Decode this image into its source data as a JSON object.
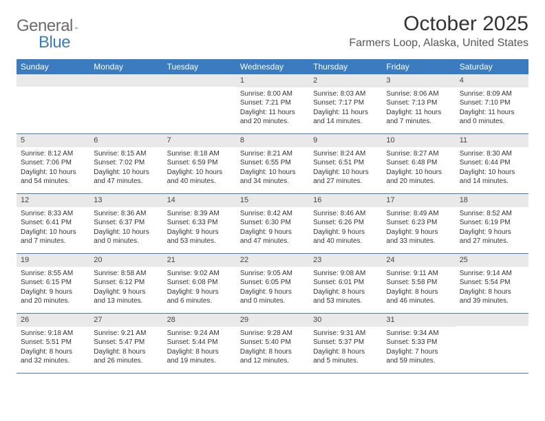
{
  "logo": {
    "text_gray": "General",
    "text_blue": "Blue"
  },
  "title": "October 2025",
  "location": "Farmers Loop, Alaska, United States",
  "colors": {
    "header_bar": "#3b7bbf",
    "daynum_bg": "#e9e9e9",
    "border": "#3b7bbf",
    "text": "#333333",
    "logo_gray": "#6b6b6b",
    "logo_blue": "#3b7bbf",
    "background": "#ffffff"
  },
  "typography": {
    "title_fontsize": 30,
    "location_fontsize": 16,
    "weekday_fontsize": 12,
    "daynum_fontsize": 11,
    "body_fontsize": 10
  },
  "weekdays": [
    "Sunday",
    "Monday",
    "Tuesday",
    "Wednesday",
    "Thursday",
    "Friday",
    "Saturday"
  ],
  "weeks": [
    [
      {
        "num": "",
        "sunrise": "",
        "sunset": "",
        "daylight": ""
      },
      {
        "num": "",
        "sunrise": "",
        "sunset": "",
        "daylight": ""
      },
      {
        "num": "",
        "sunrise": "",
        "sunset": "",
        "daylight": ""
      },
      {
        "num": "1",
        "sunrise": "Sunrise: 8:00 AM",
        "sunset": "Sunset: 7:21 PM",
        "daylight": "Daylight: 11 hours and 20 minutes."
      },
      {
        "num": "2",
        "sunrise": "Sunrise: 8:03 AM",
        "sunset": "Sunset: 7:17 PM",
        "daylight": "Daylight: 11 hours and 14 minutes."
      },
      {
        "num": "3",
        "sunrise": "Sunrise: 8:06 AM",
        "sunset": "Sunset: 7:13 PM",
        "daylight": "Daylight: 11 hours and 7 minutes."
      },
      {
        "num": "4",
        "sunrise": "Sunrise: 8:09 AM",
        "sunset": "Sunset: 7:10 PM",
        "daylight": "Daylight: 11 hours and 0 minutes."
      }
    ],
    [
      {
        "num": "5",
        "sunrise": "Sunrise: 8:12 AM",
        "sunset": "Sunset: 7:06 PM",
        "daylight": "Daylight: 10 hours and 54 minutes."
      },
      {
        "num": "6",
        "sunrise": "Sunrise: 8:15 AM",
        "sunset": "Sunset: 7:02 PM",
        "daylight": "Daylight: 10 hours and 47 minutes."
      },
      {
        "num": "7",
        "sunrise": "Sunrise: 8:18 AM",
        "sunset": "Sunset: 6:59 PM",
        "daylight": "Daylight: 10 hours and 40 minutes."
      },
      {
        "num": "8",
        "sunrise": "Sunrise: 8:21 AM",
        "sunset": "Sunset: 6:55 PM",
        "daylight": "Daylight: 10 hours and 34 minutes."
      },
      {
        "num": "9",
        "sunrise": "Sunrise: 8:24 AM",
        "sunset": "Sunset: 6:51 PM",
        "daylight": "Daylight: 10 hours and 27 minutes."
      },
      {
        "num": "10",
        "sunrise": "Sunrise: 8:27 AM",
        "sunset": "Sunset: 6:48 PM",
        "daylight": "Daylight: 10 hours and 20 minutes."
      },
      {
        "num": "11",
        "sunrise": "Sunrise: 8:30 AM",
        "sunset": "Sunset: 6:44 PM",
        "daylight": "Daylight: 10 hours and 14 minutes."
      }
    ],
    [
      {
        "num": "12",
        "sunrise": "Sunrise: 8:33 AM",
        "sunset": "Sunset: 6:41 PM",
        "daylight": "Daylight: 10 hours and 7 minutes."
      },
      {
        "num": "13",
        "sunrise": "Sunrise: 8:36 AM",
        "sunset": "Sunset: 6:37 PM",
        "daylight": "Daylight: 10 hours and 0 minutes."
      },
      {
        "num": "14",
        "sunrise": "Sunrise: 8:39 AM",
        "sunset": "Sunset: 6:33 PM",
        "daylight": "Daylight: 9 hours and 53 minutes."
      },
      {
        "num": "15",
        "sunrise": "Sunrise: 8:42 AM",
        "sunset": "Sunset: 6:30 PM",
        "daylight": "Daylight: 9 hours and 47 minutes."
      },
      {
        "num": "16",
        "sunrise": "Sunrise: 8:46 AM",
        "sunset": "Sunset: 6:26 PM",
        "daylight": "Daylight: 9 hours and 40 minutes."
      },
      {
        "num": "17",
        "sunrise": "Sunrise: 8:49 AM",
        "sunset": "Sunset: 6:23 PM",
        "daylight": "Daylight: 9 hours and 33 minutes."
      },
      {
        "num": "18",
        "sunrise": "Sunrise: 8:52 AM",
        "sunset": "Sunset: 6:19 PM",
        "daylight": "Daylight: 9 hours and 27 minutes."
      }
    ],
    [
      {
        "num": "19",
        "sunrise": "Sunrise: 8:55 AM",
        "sunset": "Sunset: 6:15 PM",
        "daylight": "Daylight: 9 hours and 20 minutes."
      },
      {
        "num": "20",
        "sunrise": "Sunrise: 8:58 AM",
        "sunset": "Sunset: 6:12 PM",
        "daylight": "Daylight: 9 hours and 13 minutes."
      },
      {
        "num": "21",
        "sunrise": "Sunrise: 9:02 AM",
        "sunset": "Sunset: 6:08 PM",
        "daylight": "Daylight: 9 hours and 6 minutes."
      },
      {
        "num": "22",
        "sunrise": "Sunrise: 9:05 AM",
        "sunset": "Sunset: 6:05 PM",
        "daylight": "Daylight: 9 hours and 0 minutes."
      },
      {
        "num": "23",
        "sunrise": "Sunrise: 9:08 AM",
        "sunset": "Sunset: 6:01 PM",
        "daylight": "Daylight: 8 hours and 53 minutes."
      },
      {
        "num": "24",
        "sunrise": "Sunrise: 9:11 AM",
        "sunset": "Sunset: 5:58 PM",
        "daylight": "Daylight: 8 hours and 46 minutes."
      },
      {
        "num": "25",
        "sunrise": "Sunrise: 9:14 AM",
        "sunset": "Sunset: 5:54 PM",
        "daylight": "Daylight: 8 hours and 39 minutes."
      }
    ],
    [
      {
        "num": "26",
        "sunrise": "Sunrise: 9:18 AM",
        "sunset": "Sunset: 5:51 PM",
        "daylight": "Daylight: 8 hours and 32 minutes."
      },
      {
        "num": "27",
        "sunrise": "Sunrise: 9:21 AM",
        "sunset": "Sunset: 5:47 PM",
        "daylight": "Daylight: 8 hours and 26 minutes."
      },
      {
        "num": "28",
        "sunrise": "Sunrise: 9:24 AM",
        "sunset": "Sunset: 5:44 PM",
        "daylight": "Daylight: 8 hours and 19 minutes."
      },
      {
        "num": "29",
        "sunrise": "Sunrise: 9:28 AM",
        "sunset": "Sunset: 5:40 PM",
        "daylight": "Daylight: 8 hours and 12 minutes."
      },
      {
        "num": "30",
        "sunrise": "Sunrise: 9:31 AM",
        "sunset": "Sunset: 5:37 PM",
        "daylight": "Daylight: 8 hours and 5 minutes."
      },
      {
        "num": "31",
        "sunrise": "Sunrise: 9:34 AM",
        "sunset": "Sunset: 5:33 PM",
        "daylight": "Daylight: 7 hours and 59 minutes."
      },
      {
        "num": "",
        "sunrise": "",
        "sunset": "",
        "daylight": ""
      }
    ]
  ]
}
